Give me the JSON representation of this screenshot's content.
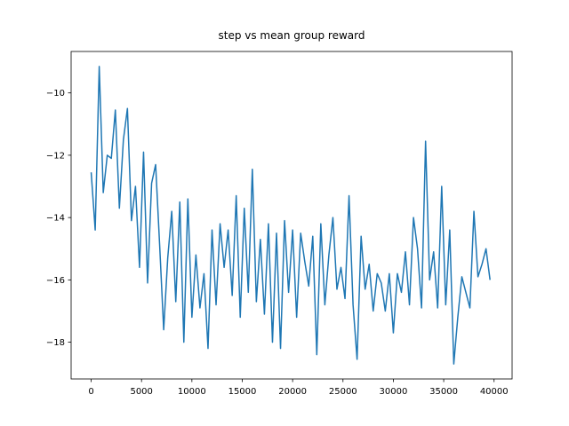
{
  "chart_data": {
    "type": "line",
    "title": "step vs mean group reward",
    "x": [
      0,
      400,
      800,
      1200,
      1600,
      2000,
      2400,
      2800,
      3200,
      3600,
      4000,
      4400,
      4800,
      5200,
      5600,
      6000,
      6400,
      6800,
      7200,
      7600,
      8000,
      8400,
      8800,
      9200,
      9600,
      10000,
      10400,
      10800,
      11200,
      11600,
      12000,
      12400,
      12800,
      13200,
      13600,
      14000,
      14400,
      14800,
      15200,
      15600,
      16000,
      16400,
      16800,
      17200,
      17600,
      18000,
      18400,
      18800,
      19200,
      19600,
      20000,
      20400,
      20800,
      21200,
      21600,
      22000,
      22400,
      22800,
      23200,
      23600,
      24000,
      24400,
      24800,
      25200,
      25600,
      26000,
      26400,
      26800,
      27200,
      27600,
      28000,
      28400,
      28800,
      29200,
      29600,
      30000,
      30400,
      30800,
      31200,
      31600,
      32000,
      32400,
      32800,
      33200,
      33600,
      34000,
      34400,
      34800,
      35200,
      35600,
      36000,
      36400,
      36800,
      37200,
      37600,
      38000,
      38400,
      38800,
      39200,
      39600
    ],
    "series": [
      {
        "color": "#1f77b4",
        "values": [
          -12.55,
          -14.4,
          -9.15,
          -13.2,
          -12.0,
          -12.1,
          -10.55,
          -13.7,
          -11.5,
          -10.5,
          -14.1,
          -13.0,
          -15.6,
          -11.9,
          -16.1,
          -12.9,
          -12.3,
          -14.9,
          -17.6,
          -15.3,
          -13.8,
          -16.7,
          -13.5,
          -18.0,
          -13.4,
          -17.2,
          -15.2,
          -16.9,
          -15.8,
          -18.2,
          -14.4,
          -16.8,
          -14.2,
          -15.6,
          -14.4,
          -16.5,
          -13.3,
          -17.2,
          -13.7,
          -16.4,
          -12.45,
          -16.7,
          -14.7,
          -17.1,
          -14.2,
          -18.0,
          -14.5,
          -18.2,
          -14.1,
          -16.4,
          -14.4,
          -17.2,
          -14.5,
          -15.4,
          -16.2,
          -14.6,
          -18.4,
          -14.2,
          -16.8,
          -15.2,
          -14.0,
          -16.3,
          -15.6,
          -16.6,
          -13.3,
          -16.8,
          -18.55,
          -14.6,
          -16.3,
          -15.5,
          -17.0,
          -15.8,
          -16.1,
          -17.0,
          -15.8,
          -17.7,
          -15.8,
          -16.4,
          -15.1,
          -16.8,
          -14.0,
          -15.0,
          -16.9,
          -11.55,
          -16.0,
          -15.1,
          -16.9,
          -13.0,
          -16.8,
          -14.4,
          -18.7,
          -17.2,
          -15.9,
          -16.4,
          -16.9,
          -13.8,
          -15.9,
          -15.5,
          -15.0,
          -16.0
        ]
      }
    ],
    "xlim": [
      -1990,
      41790
    ],
    "ylim": [
      -19.18,
      -8.67
    ],
    "xticks": [
      0,
      5000,
      10000,
      15000,
      20000,
      25000,
      30000,
      35000,
      40000
    ],
    "yticks": [
      {
        "value": -18,
        "label": "−18"
      },
      {
        "value": -16,
        "label": "−16"
      },
      {
        "value": -14,
        "label": "−14"
      },
      {
        "value": -12,
        "label": "−12"
      },
      {
        "value": -10,
        "label": "−10"
      }
    ]
  }
}
